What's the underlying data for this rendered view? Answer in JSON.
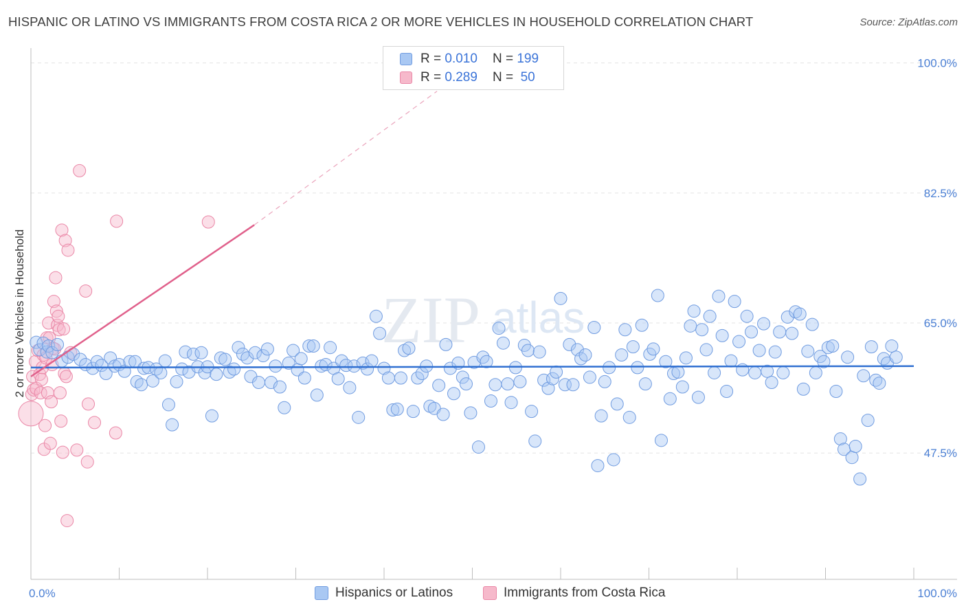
{
  "title": "HISPANIC OR LATINO VS IMMIGRANTS FROM COSTA RICA 2 OR MORE VEHICLES IN HOUSEHOLD CORRELATION CHART",
  "source": "Source: ZipAtlas.com",
  "watermark": {
    "zip": "ZIP",
    "atlas": "atlas"
  },
  "colors": {
    "blue_fill": "#a9c8f3",
    "blue_stroke": "#6f9be0",
    "blue_line": "#2f6fd1",
    "pink_fill": "#f6b9cb",
    "pink_stroke": "#ea86a6",
    "pink_line": "#e0608b",
    "axis_text": "#4a7fd4",
    "grid": "#e3e3e3"
  },
  "legend": {
    "rows": [
      {
        "r_label": "R = ",
        "r_value": "0.010",
        "n_label": "N = ",
        "n_value": "199",
        "series": "blue"
      },
      {
        "r_label": "R = ",
        "r_value": "0.289",
        "n_label": "N = ",
        "n_value": " 50",
        "series": "pink"
      }
    ]
  },
  "bottom_legend": [
    {
      "label": "Hispanics or Latinos",
      "series": "blue"
    },
    {
      "label": "Immigrants from Costa Rica",
      "series": "pink"
    }
  ],
  "chart_data": {
    "type": "scatter",
    "title": "HISPANIC OR LATINO VS IMMIGRANTS FROM COSTA RICA 2 OR MORE VEHICLES IN HOUSEHOLD CORRELATION CHART",
    "xlabel": "",
    "ylabel": "2 or more Vehicles in Household",
    "xlim": [
      0,
      100
    ],
    "ylim": [
      30.5,
      102
    ],
    "x_tick_labels": [
      "0.0%",
      "100.0%"
    ],
    "y_ticks": [
      47.5,
      65.0,
      82.5,
      100.0
    ],
    "y_tick_labels": [
      "47.5%",
      "65.0%",
      "82.5%",
      "100.0%"
    ],
    "grid": true,
    "series": [
      {
        "name": "Hispanics or Latinos",
        "color": "blue",
        "R": 0.01,
        "N": 199,
        "trend": {
          "x": [
            0,
            100
          ],
          "y": [
            59.0,
            59.2
          ]
        },
        "points": [
          [
            0.6,
            62.4
          ],
          [
            1.0,
            61.4
          ],
          [
            1.4,
            62.3
          ],
          [
            1.8,
            61.1
          ],
          [
            2.0,
            61.9
          ],
          [
            2.4,
            61.0
          ],
          [
            3.0,
            62.1
          ],
          [
            3.5,
            59.9
          ],
          [
            4.2,
            60.4
          ],
          [
            4.8,
            60.8
          ],
          [
            5.6,
            60.1
          ],
          [
            6.2,
            59.4
          ],
          [
            7.0,
            58.9
          ],
          [
            7.5,
            59.8
          ],
          [
            8.0,
            59.3
          ],
          [
            8.5,
            58.2
          ],
          [
            9.0,
            60.3
          ],
          [
            9.5,
            59.2
          ],
          [
            10.0,
            59.4
          ],
          [
            10.6,
            58.5
          ],
          [
            11.2,
            59.8
          ],
          [
            11.8,
            59.8
          ],
          [
            12.0,
            57.1
          ],
          [
            12.5,
            56.7
          ],
          [
            12.8,
            58.9
          ],
          [
            13.3,
            59.0
          ],
          [
            13.8,
            57.2
          ],
          [
            14.2,
            58.8
          ],
          [
            14.7,
            58.3
          ],
          [
            15.2,
            59.9
          ],
          [
            15.6,
            54.0
          ],
          [
            16.0,
            51.3
          ],
          [
            16.5,
            57.1
          ],
          [
            17.1,
            58.8
          ],
          [
            17.5,
            61.1
          ],
          [
            17.9,
            58.4
          ],
          [
            18.4,
            60.8
          ],
          [
            18.9,
            59.1
          ],
          [
            19.3,
            61.0
          ],
          [
            19.7,
            58.3
          ],
          [
            20.0,
            59.1
          ],
          [
            20.5,
            52.5
          ],
          [
            21.0,
            58.1
          ],
          [
            21.5,
            60.3
          ],
          [
            22.0,
            60.1
          ],
          [
            22.5,
            58.4
          ],
          [
            23.0,
            58.8
          ],
          [
            23.5,
            61.7
          ],
          [
            24.0,
            60.8
          ],
          [
            24.5,
            60.3
          ],
          [
            24.9,
            57.8
          ],
          [
            25.4,
            61.0
          ],
          [
            25.8,
            57.0
          ],
          [
            26.3,
            60.6
          ],
          [
            26.8,
            61.5
          ],
          [
            27.2,
            57.0
          ],
          [
            27.7,
            59.2
          ],
          [
            28.2,
            56.4
          ],
          [
            28.7,
            53.6
          ],
          [
            29.2,
            59.6
          ],
          [
            29.7,
            61.3
          ],
          [
            30.2,
            58.7
          ],
          [
            30.6,
            60.2
          ],
          [
            31.0,
            57.6
          ],
          [
            31.5,
            61.9
          ],
          [
            32.0,
            61.9
          ],
          [
            32.4,
            55.3
          ],
          [
            32.9,
            59.2
          ],
          [
            33.4,
            59.4
          ],
          [
            33.9,
            61.7
          ],
          [
            34.3,
            58.9
          ],
          [
            34.8,
            57.5
          ],
          [
            35.2,
            59.9
          ],
          [
            35.7,
            59.3
          ],
          [
            36.1,
            56.3
          ],
          [
            36.6,
            59.2
          ],
          [
            37.1,
            52.3
          ],
          [
            37.6,
            59.6
          ],
          [
            38.1,
            58.8
          ],
          [
            38.6,
            59.9
          ],
          [
            39.1,
            65.9
          ],
          [
            39.5,
            63.6
          ],
          [
            40.0,
            58.9
          ],
          [
            40.5,
            57.6
          ],
          [
            41.0,
            53.3
          ],
          [
            41.5,
            53.4
          ],
          [
            41.9,
            57.6
          ],
          [
            42.3,
            61.3
          ],
          [
            42.8,
            61.6
          ],
          [
            43.3,
            53.1
          ],
          [
            43.8,
            57.6
          ],
          [
            44.3,
            58.2
          ],
          [
            44.8,
            59.2
          ],
          [
            45.2,
            53.8
          ],
          [
            45.7,
            53.5
          ],
          [
            46.2,
            56.6
          ],
          [
            46.7,
            52.7
          ],
          [
            47.0,
            62.1
          ],
          [
            47.5,
            58.9
          ],
          [
            47.9,
            55.5
          ],
          [
            48.4,
            59.6
          ],
          [
            48.9,
            57.7
          ],
          [
            49.3,
            56.8
          ],
          [
            49.8,
            52.9
          ],
          [
            50.2,
            59.7
          ],
          [
            50.7,
            48.3
          ],
          [
            51.2,
            60.4
          ],
          [
            51.6,
            59.8
          ],
          [
            52.1,
            54.5
          ],
          [
            52.6,
            56.7
          ],
          [
            53.0,
            64.3
          ],
          [
            53.5,
            62.3
          ],
          [
            54.0,
            56.8
          ],
          [
            54.4,
            54.3
          ],
          [
            54.9,
            59.0
          ],
          [
            55.4,
            57.1
          ],
          [
            55.9,
            62.0
          ],
          [
            56.3,
            61.3
          ],
          [
            56.7,
            53.1
          ],
          [
            57.1,
            49.1
          ],
          [
            57.6,
            61.1
          ],
          [
            58.1,
            57.3
          ],
          [
            58.6,
            56.2
          ],
          [
            59.1,
            57.5
          ],
          [
            59.5,
            58.4
          ],
          [
            60.0,
            68.3
          ],
          [
            60.5,
            56.7
          ],
          [
            61.0,
            62.1
          ],
          [
            61.4,
            56.7
          ],
          [
            61.9,
            61.4
          ],
          [
            62.3,
            60.2
          ],
          [
            62.8,
            60.7
          ],
          [
            63.3,
            57.7
          ],
          [
            63.8,
            64.4
          ],
          [
            64.2,
            45.8
          ],
          [
            64.6,
            52.5
          ],
          [
            65.0,
            57.1
          ],
          [
            65.5,
            59.0
          ],
          [
            66.0,
            46.6
          ],
          [
            66.4,
            54.1
          ],
          [
            66.9,
            60.7
          ],
          [
            67.3,
            64.1
          ],
          [
            67.8,
            52.3
          ],
          [
            68.2,
            61.8
          ],
          [
            68.7,
            59.0
          ],
          [
            69.2,
            64.7
          ],
          [
            69.6,
            56.8
          ],
          [
            70.1,
            60.8
          ],
          [
            70.5,
            61.5
          ],
          [
            71.0,
            68.7
          ],
          [
            71.4,
            49.2
          ],
          [
            71.9,
            59.8
          ],
          [
            72.4,
            54.8
          ],
          [
            72.8,
            58.2
          ],
          [
            73.3,
            58.4
          ],
          [
            73.8,
            56.4
          ],
          [
            74.2,
            60.3
          ],
          [
            74.7,
            64.6
          ],
          [
            75.1,
            66.6
          ],
          [
            75.6,
            55.0
          ],
          [
            76.0,
            64.1
          ],
          [
            76.5,
            61.4
          ],
          [
            76.9,
            65.9
          ],
          [
            77.4,
            58.3
          ],
          [
            77.9,
            68.6
          ],
          [
            78.3,
            63.3
          ],
          [
            78.8,
            55.8
          ],
          [
            79.3,
            59.9
          ],
          [
            79.7,
            67.9
          ],
          [
            80.2,
            62.5
          ],
          [
            80.6,
            58.7
          ],
          [
            81.1,
            65.9
          ],
          [
            81.6,
            63.8
          ],
          [
            82.0,
            58.3
          ],
          [
            82.5,
            61.3
          ],
          [
            83.0,
            64.9
          ],
          [
            83.4,
            58.5
          ],
          [
            83.9,
            57.0
          ],
          [
            84.3,
            61.1
          ],
          [
            84.8,
            63.8
          ],
          [
            85.2,
            58.3
          ],
          [
            85.7,
            65.8
          ],
          [
            86.2,
            63.6
          ],
          [
            86.6,
            66.5
          ],
          [
            87.1,
            66.2
          ],
          [
            87.5,
            56.1
          ],
          [
            88.0,
            61.2
          ],
          [
            88.5,
            64.8
          ],
          [
            88.9,
            58.3
          ],
          [
            89.4,
            60.5
          ],
          [
            89.8,
            59.8
          ],
          [
            90.3,
            61.7
          ],
          [
            90.8,
            61.9
          ],
          [
            91.2,
            55.8
          ],
          [
            91.7,
            49.4
          ],
          [
            92.1,
            48.0
          ],
          [
            92.5,
            60.4
          ],
          [
            93.0,
            46.9
          ],
          [
            93.4,
            48.4
          ],
          [
            93.9,
            44.0
          ],
          [
            94.3,
            57.9
          ],
          [
            94.8,
            51.9
          ],
          [
            95.2,
            61.8
          ],
          [
            95.7,
            57.3
          ],
          [
            96.1,
            56.9
          ],
          [
            96.6,
            60.2
          ],
          [
            97.0,
            59.6
          ],
          [
            97.5,
            61.9
          ],
          [
            98.0,
            60.4
          ]
        ]
      },
      {
        "name": "Immigrants from Costa Rica",
        "color": "pink",
        "R": 0.289,
        "N": 50,
        "trend": {
          "x": [
            0,
            25.3
          ],
          "y": [
            57.8,
            78.2
          ]
        },
        "trend_dashed": {
          "x": [
            25.3,
            46.0
          ],
          "y": [
            78.2,
            96.2
          ]
        },
        "points": [
          [
            0.0,
            52.8
          ],
          [
            0.1,
            55.4
          ],
          [
            0.2,
            57.8
          ],
          [
            0.3,
            56.0
          ],
          [
            0.5,
            59.8
          ],
          [
            0.6,
            56.2
          ],
          [
            0.8,
            61.3
          ],
          [
            1.0,
            58.1
          ],
          [
            1.1,
            55.6
          ],
          [
            1.2,
            57.4
          ],
          [
            1.3,
            59.0
          ],
          [
            1.4,
            60.7
          ],
          [
            1.5,
            48.0
          ],
          [
            1.6,
            51.2
          ],
          [
            1.7,
            60.3
          ],
          [
            1.8,
            63.0
          ],
          [
            1.9,
            55.6
          ],
          [
            2.0,
            65.0
          ],
          [
            2.1,
            63.0
          ],
          [
            2.2,
            48.8
          ],
          [
            2.3,
            54.4
          ],
          [
            2.4,
            59.4
          ],
          [
            2.5,
            61.6
          ],
          [
            2.6,
            67.9
          ],
          [
            2.7,
            61.5
          ],
          [
            2.8,
            71.1
          ],
          [
            2.9,
            66.6
          ],
          [
            3.0,
            64.7
          ],
          [
            3.1,
            65.9
          ],
          [
            3.2,
            64.1
          ],
          [
            3.3,
            55.6
          ],
          [
            3.4,
            51.8
          ],
          [
            3.5,
            77.5
          ],
          [
            3.6,
            47.6
          ],
          [
            3.7,
            64.2
          ],
          [
            3.8,
            58.2
          ],
          [
            3.9,
            76.1
          ],
          [
            4.0,
            57.8
          ],
          [
            4.1,
            38.4
          ],
          [
            4.2,
            74.8
          ],
          [
            4.5,
            61.0
          ],
          [
            5.2,
            47.9
          ],
          [
            5.5,
            85.5
          ],
          [
            6.2,
            69.3
          ],
          [
            6.4,
            46.3
          ],
          [
            6.5,
            54.1
          ],
          [
            7.2,
            51.6
          ],
          [
            9.6,
            50.2
          ],
          [
            9.7,
            78.7
          ],
          [
            20.1,
            78.6
          ]
        ]
      }
    ]
  }
}
